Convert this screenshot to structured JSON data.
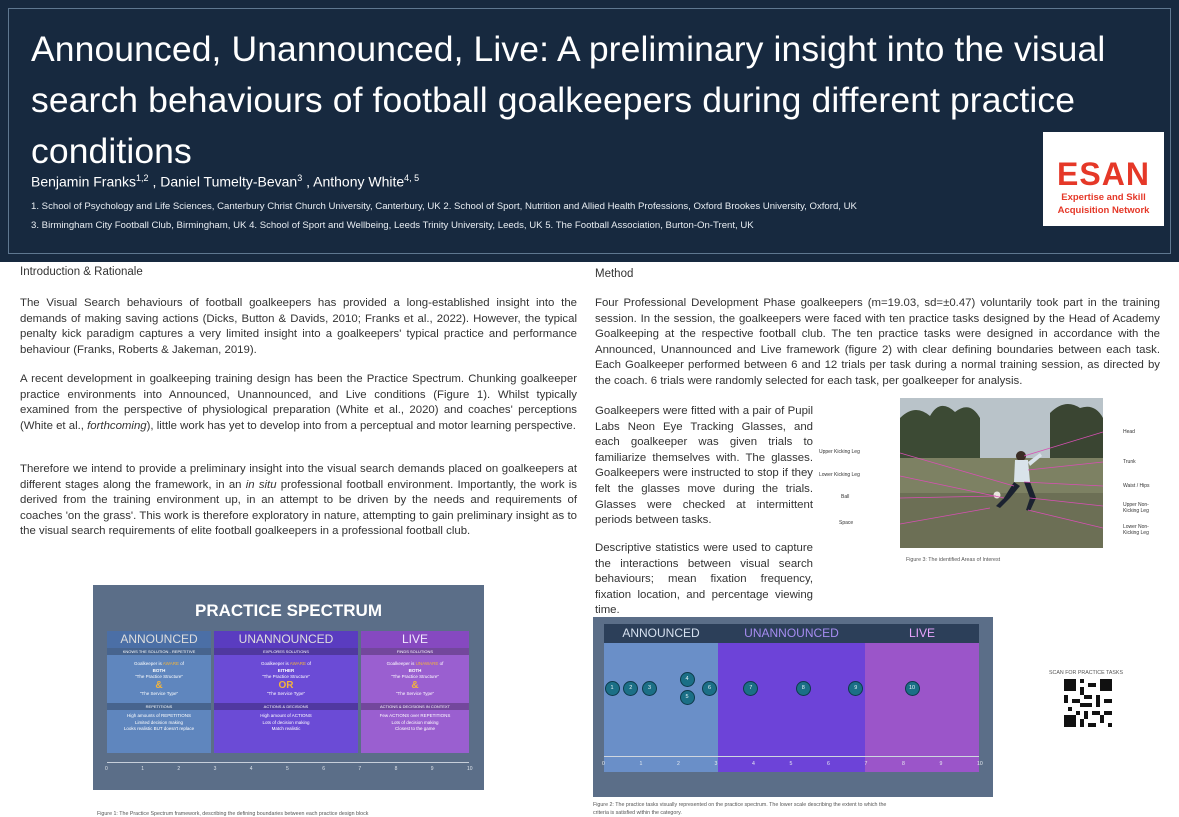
{
  "header": {
    "title": "Announced, Unannounced, Live: A preliminary insight into the visual search behaviours of football goalkeepers during different practice conditions",
    "authors": [
      {
        "name": "Benjamin Franks",
        "sup": "1,2"
      },
      {
        "name": "Daniel Tumelty-Bevan",
        "sup": "3"
      },
      {
        "name": "Anthony White",
        "sup": "4, 5"
      }
    ],
    "affiliations_line1": "1. School of Psychology and Life Sciences, Canterbury Christ Church University, Canterbury, UK 2. School of Sport, Nutrition and Allied Health Professions, Oxford Brookes University, Oxford, UK",
    "affiliations_line2": "3. Birmingham City Football Club, Birmingham, UK 4. School of Sport and Wellbeing, Leeds Trinity University, Leeds, UK 5. The Football Association, Burton-On-Trent, UK",
    "logo_big": "ESAN",
    "logo_line1": "Expertise and Skill",
    "logo_line2": "Acquisition Network"
  },
  "intro": {
    "heading": "Introduction & Rationale",
    "p1": "The Visual Search behaviours of football goalkeepers has provided a long-established insight into the demands of making saving actions (Dicks, Button & Davids, 2010; Franks et al., 2022). However, the typical penalty kick paradigm captures a very limited insight into a goalkeepers' typical practice and performance behaviour (Franks, Roberts & Jakeman, 2019).",
    "p2a": "A recent development in goalkeeping training design has been the Practice Spectrum. Chunking goalkeeper practice environments into Announced, Unannounced, and Live conditions (Figure 1). Whilst typically examined from the perspective of physiological preparation (White et al., 2020) and coaches' perceptions (White et al., ",
    "p2_italic": "forthcoming",
    "p2b": "), little work has yet to develop into from a perceptual and motor learning perspective.",
    "p3a": "Therefore we intend to provide a preliminary insight into the visual search demands placed on goalkeepers at different stages along the framework, in an ",
    "p3_italic": "in situ",
    "p3b": " professional football environment. Importantly, the work is derived from the training environment up, in an attempt to be driven by the needs and requirements of coaches 'on the grass'. This work is therefore exploratory in nature, attempting to gain preliminary insight as to the visual search requirements of elite football goalkeepers in a professional football club."
  },
  "method": {
    "heading": "Method",
    "p1": "Four Professional Development Phase goalkeepers (m=19.03, sd=±0.47) voluntarily took part in the training session. In the session, the goalkeepers were faced with ten practice tasks designed by the Head of Academy Goalkeeping at the respective football club. The ten practice tasks were designed in accordance with the Announced, Unannounced and Live framework (figure 2) with clear defining boundaries between each task. Each Goalkeeper performed between 6 and 12 trials per task during a normal training session, as directed by the coach. 6 trials were randomly selected for each task, per goalkeeper for analysis.",
    "p2": "Goalkeepers were fitted with a pair of Pupil Labs Neon Eye Tracking Glasses, and each goalkeeper was given trials to familiarize themselves with. The glasses. Goalkeepers were instructed to stop if they felt the glasses move during the trials. Glasses were checked at intermittent periods between tasks.",
    "p3": "Descriptive statistics were used to capture the interactions between visual search behaviours; mean fixation frequency, fixation location, and percentage viewing time."
  },
  "figure1": {
    "title": "PRACTICE SPECTRUM",
    "columns": [
      {
        "head": "ANNOUNCED",
        "sub1": "KNOWS THE SOLUTION - REPETITIVE",
        "l1": "Goalkeeper is",
        "mark1": "AWARE",
        "l1b": "of",
        "l2": "BOTH",
        "l3": "\"The Practice Structure\"",
        "sym": "&",
        "l4": "\"The Service Type\"",
        "sub2": "REPETITIONS",
        "b1": "High amounts of REPETITIONS",
        "b2": "Limited decision making",
        "b3": "Looks realistic BUT doesn't replace"
      },
      {
        "head": "UNANNOUNCED",
        "sub1": "EXPLORES SOLUTIONS",
        "l1": "Goalkeeper is",
        "mark1": "AWARE",
        "l1b": "of",
        "l2": "EITHER",
        "l3": "\"The Practice Structure\"",
        "sym": "OR",
        "l4": "\"The Service Type\"",
        "sub2": "ACTIONS & DECISIONS",
        "b1": "High amount of ACTIONS",
        "b2": "Lots of decision making",
        "b3": "Match realistic"
      },
      {
        "head": "LIVE",
        "sub1": "FINDS SOLUTIONS",
        "l1": "Goalkeeper is",
        "mark1": "UNAWARE",
        "l1b": "of",
        "l2": "BOTH",
        "l3": "\"The Practice Structure\"",
        "sym": "&",
        "l4": "\"The Service Type\"",
        "sub2": "ACTIONS & DECISIONS IN CONTEXT",
        "b1": "Few ACTIONS over REPETITIONS",
        "b2": "Lots of decision making",
        "b3": "Closest to the game"
      }
    ],
    "scale": [
      "0",
      "1",
      "2",
      "3",
      "4",
      "5",
      "6",
      "7",
      "8",
      "9",
      "10"
    ],
    "caption": "Figure 1: The Practice Spectrum framework, describing the defining boundaries between each practice design block"
  },
  "figure2": {
    "headers": [
      "ANNOUNCED",
      "UNANNOUNCED",
      "LIVE"
    ],
    "tasks": [
      {
        "label": "1",
        "x": 0.2,
        "row": 0
      },
      {
        "label": "2",
        "x": 0.7,
        "row": 0
      },
      {
        "label": "3",
        "x": 1.2,
        "row": 0
      },
      {
        "label": "4",
        "x": 2.2,
        "row": -1
      },
      {
        "label": "5",
        "x": 2.2,
        "row": 1
      },
      {
        "label": "6",
        "x": 2.8,
        "row": 0
      },
      {
        "label": "7",
        "x": 3.9,
        "row": 0
      },
      {
        "label": "8",
        "x": 5.3,
        "row": 0
      },
      {
        "label": "9",
        "x": 6.7,
        "row": 0
      },
      {
        "label": "10",
        "x": 8.2,
        "row": 0
      }
    ],
    "scale": [
      "0",
      "1",
      "2",
      "3",
      "4",
      "5",
      "6",
      "7",
      "8",
      "9",
      "10"
    ],
    "caption1": "Figure 2: The practice tasks visually represented on the practice spectrum. The lower scale describing the extent to which the",
    "caption2": "criteria is satisfied within the category."
  },
  "figure3": {
    "labels_left": [
      "Upper Kicking Leg",
      "Lower Kicking Leg",
      "Ball",
      "Space"
    ],
    "labels_right": [
      "Head",
      "Trunk",
      "Waist / Hips",
      "Upper Non-Kicking Leg",
      "Lower Non-Kicking Leg"
    ],
    "caption": "Figure 3: The identified Areas of Interest"
  },
  "qr": {
    "label": "SCAN FOR PRACTICE TASKS"
  },
  "colors": {
    "header_bg": "#17293f",
    "announced": "#5f86be",
    "unannounced": "#6b4bd6",
    "live": "#9a5fd0",
    "logo_red": "#e53828"
  }
}
